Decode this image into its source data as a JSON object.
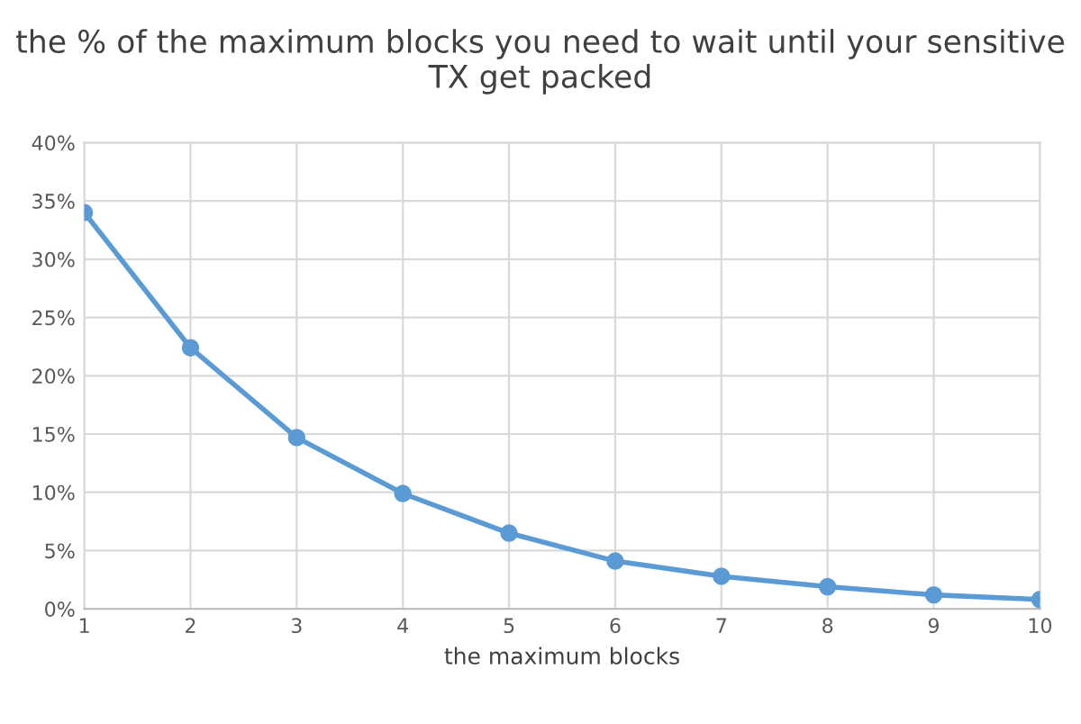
{
  "chart_data": {
    "type": "line",
    "title": "the % of the maximum blocks you need to wait until your sensitive TX get packed",
    "xlabel": "the maximum blocks",
    "x": [
      1,
      2,
      3,
      4,
      5,
      6,
      7,
      8,
      9,
      10
    ],
    "series": [
      {
        "color": "#5b9bd5",
        "values": [
          34.0,
          22.4,
          14.7,
          9.9,
          6.5,
          4.1,
          2.8,
          1.9,
          1.2,
          0.8
        ]
      }
    ],
    "xlim": [
      1,
      10
    ],
    "xticks": [
      1,
      2,
      3,
      4,
      5,
      6,
      7,
      8,
      9,
      10
    ],
    "ylim": [
      0,
      40
    ],
    "yticks": [
      {
        "value": 0,
        "label": "0%"
      },
      {
        "value": 5,
        "label": "5%"
      },
      {
        "value": 10,
        "label": "10%"
      },
      {
        "value": 15,
        "label": "15%"
      },
      {
        "value": 20,
        "label": "20%"
      },
      {
        "value": 25,
        "label": "25%"
      },
      {
        "value": 30,
        "label": "30%"
      },
      {
        "value": 35,
        "label": "35%"
      },
      {
        "value": 40,
        "label": "40%"
      }
    ],
    "grid": true,
    "marker": "circle",
    "line_style": "solid"
  }
}
